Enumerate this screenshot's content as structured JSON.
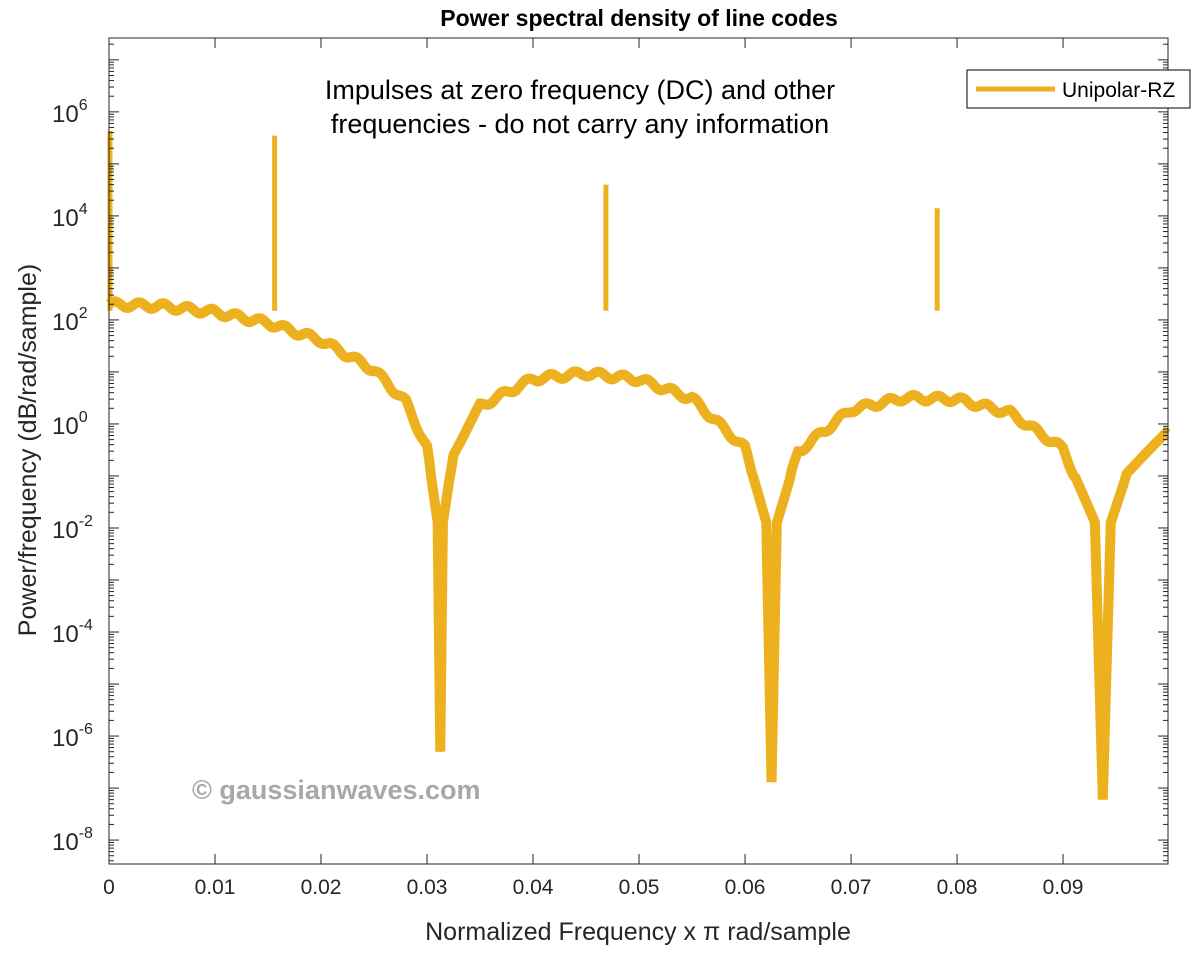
{
  "chart_data": {
    "type": "line",
    "title": "Power spectral density of line codes",
    "xlabel": "Normalized Frequency x π rad/sample",
    "ylabel": "Power/frequency (dB/rad/sample)",
    "xlim": [
      0,
      0.0999
    ],
    "ylim_log10": [
      -8.46,
      7.42
    ],
    "yscale": "log",
    "grid": false,
    "legend_placement": "top-right",
    "x_ticks": [
      "0",
      "0.01",
      "0.02",
      "0.03",
      "0.04",
      "0.05",
      "0.06",
      "0.07",
      "0.08",
      "0.09"
    ],
    "x_tick_values": [
      0,
      0.01,
      0.02,
      0.03,
      0.04,
      0.05,
      0.06,
      0.07,
      0.08,
      0.09
    ],
    "y_tick_exponents": [
      -8,
      -6,
      -4,
      -2,
      0,
      2,
      4,
      6
    ],
    "annotation": [
      "Impulses at zero frequency (DC) and other",
      "frequencies - do not carry any information"
    ],
    "watermark": "© gaussianwaves.com",
    "series": [
      {
        "name": "Unipolar-RZ",
        "color": "#EDB120",
        "x": [
          0,
          0.005,
          0.01,
          0.015,
          0.02,
          0.025,
          0.028,
          0.03,
          0.031,
          0.03125,
          0.0315,
          0.0325,
          0.035,
          0.04,
          0.045,
          0.05,
          0.055,
          0.06,
          0.062,
          0.0625,
          0.063,
          0.065,
          0.07,
          0.075,
          0.08,
          0.085,
          0.09,
          0.093,
          0.09375,
          0.0945,
          0.096,
          0.0999
        ],
        "y": [
          200,
          184,
          141,
          87.6,
          40.5,
          10.9,
          2.63,
          0.345,
          0.013,
          5e-07,
          0.0126,
          0.294,
          2.19,
          7.34,
          9.43,
          7.16,
          3.07,
          0.34,
          0.013,
          1.3e-07,
          0.0126,
          0.29,
          1.89,
          3.18,
          2.98,
          1.63,
          0.331,
          0.013,
          6e-08,
          0.0126,
          0.106,
          0.64
        ]
      }
    ],
    "impulses": [
      {
        "x": 0,
        "y": 430000
      },
      {
        "x": 0.015625,
        "y": 350000
      },
      {
        "x": 0.046875,
        "y": 40000
      },
      {
        "x": 0.078125,
        "y": 14000
      }
    ]
  }
}
